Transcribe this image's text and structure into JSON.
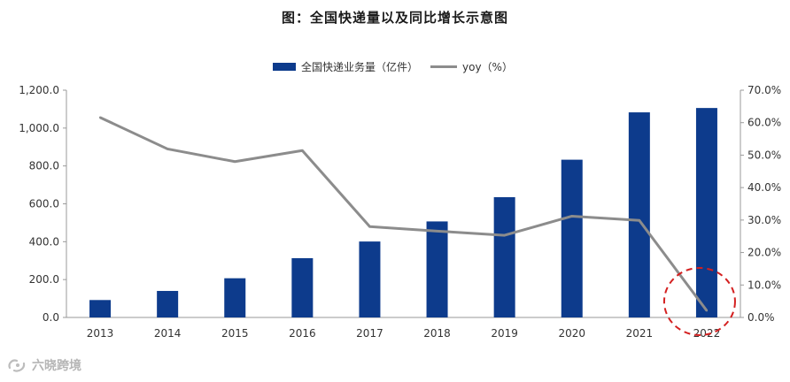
{
  "chart_data": {
    "type": "bar",
    "title": "图：全国快递量以及同比增长示意图",
    "categories": [
      "2013",
      "2014",
      "2015",
      "2016",
      "2017",
      "2018",
      "2019",
      "2020",
      "2021",
      "2022"
    ],
    "series": [
      {
        "name": "全国快递业务量（亿件）",
        "type": "bar",
        "axis": "left",
        "values": [
          92,
          140,
          207,
          313,
          401,
          507,
          635,
          833,
          1083,
          1106
        ],
        "color": "#0d3b8c"
      },
      {
        "name": "yoy（%）",
        "type": "line",
        "axis": "right",
        "values": [
          61.6,
          51.9,
          48.0,
          51.4,
          28.0,
          26.6,
          25.3,
          31.2,
          29.9,
          2.1
        ],
        "color": "#8c8c8c"
      }
    ],
    "y_left": {
      "ylim": [
        0,
        1200
      ],
      "ticks": [
        "0.0",
        "200.0",
        "400.0",
        "600.0",
        "800.0",
        "1,000.0",
        "1,200.0"
      ]
    },
    "y_right": {
      "ylim": [
        0,
        70
      ],
      "ticks": [
        "0.0%",
        "10.0%",
        "20.0%",
        "30.0%",
        "40.0%",
        "50.0%",
        "60.0%",
        "70.0%"
      ]
    },
    "grid": false,
    "legend": "top-center",
    "annotation": {
      "shape": "dashed-ellipse",
      "target_category": "2022",
      "color": "#d42020"
    }
  },
  "watermark": {
    "text": "六晓跨境",
    "icon": "watermark-logo-icon"
  }
}
